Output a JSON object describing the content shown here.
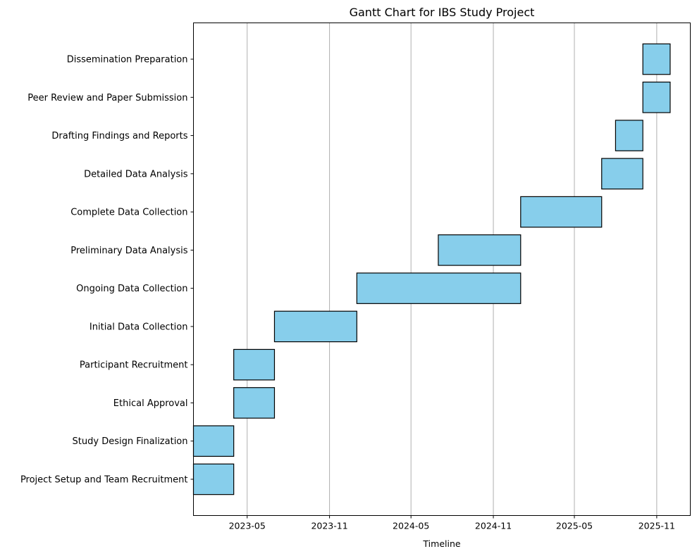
{
  "chart_data": {
    "type": "gantt",
    "title": "Gantt Chart for IBS Study Project",
    "xlabel": "Timeline",
    "ylabel": "",
    "xlim": [
      "2023-01-01",
      "2026-01-15"
    ],
    "grid": "vertical",
    "colors": {
      "bar_fill": "#87CEEB",
      "bar_edge": "#000000",
      "grid": "#b0b0b0"
    },
    "x_ticks": [
      {
        "label": "2023-05",
        "date": "2023-05-01"
      },
      {
        "label": "2023-11",
        "date": "2023-11-01"
      },
      {
        "label": "2024-05",
        "date": "2024-05-01"
      },
      {
        "label": "2024-11",
        "date": "2024-11-01"
      },
      {
        "label": "2025-05",
        "date": "2025-05-01"
      },
      {
        "label": "2025-11",
        "date": "2025-11-01"
      }
    ],
    "tasks": [
      {
        "name": "Project Setup and Team Recruitment",
        "start": "2023-01-01",
        "end": "2023-04-01"
      },
      {
        "name": "Study Design Finalization",
        "start": "2023-01-01",
        "end": "2023-04-01"
      },
      {
        "name": "Ethical Approval",
        "start": "2023-04-01",
        "end": "2023-07-01"
      },
      {
        "name": "Participant Recruitment",
        "start": "2023-04-01",
        "end": "2023-07-01"
      },
      {
        "name": "Initial Data Collection",
        "start": "2023-07-01",
        "end": "2024-01-01"
      },
      {
        "name": "Ongoing Data Collection",
        "start": "2024-01-01",
        "end": "2025-01-01"
      },
      {
        "name": "Preliminary Data Analysis",
        "start": "2024-07-01",
        "end": "2025-01-01"
      },
      {
        "name": "Complete Data Collection",
        "start": "2025-01-01",
        "end": "2025-07-01"
      },
      {
        "name": "Detailed Data Analysis",
        "start": "2025-07-01",
        "end": "2025-10-01"
      },
      {
        "name": "Drafting Findings and Reports",
        "start": "2025-08-01",
        "end": "2025-10-01"
      },
      {
        "name": "Peer Review and Paper Submission",
        "start": "2025-10-01",
        "end": "2025-12-01"
      },
      {
        "name": "Dissemination Preparation",
        "start": "2025-10-01",
        "end": "2025-12-01"
      }
    ]
  }
}
